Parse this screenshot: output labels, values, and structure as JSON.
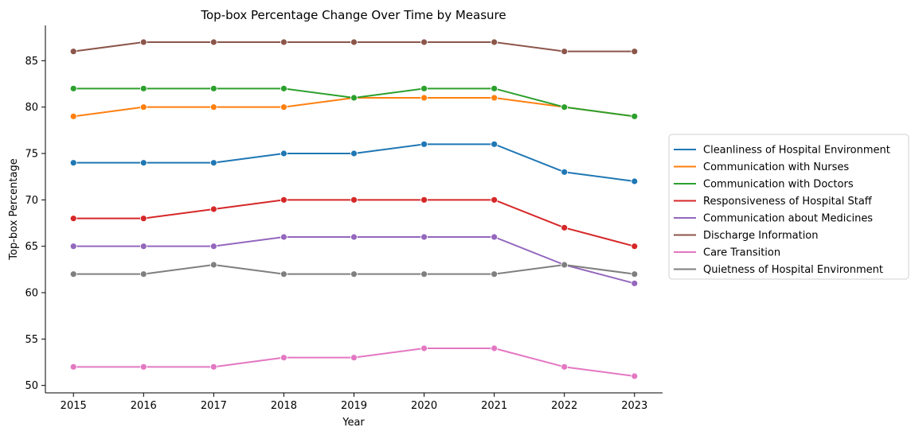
{
  "chart_data": {
    "type": "line",
    "title": "Top-box Percentage Change Over Time by Measure",
    "xlabel": "Year",
    "ylabel": "Top-box Percentage",
    "x": [
      2015,
      2016,
      2017,
      2018,
      2019,
      2020,
      2021,
      2022,
      2023
    ],
    "xlim": [
      2014.6,
      2023.4
    ],
    "ylim": [
      49.2,
      88.8
    ],
    "yticks": [
      50,
      55,
      60,
      65,
      70,
      75,
      80,
      85
    ],
    "grid": false,
    "markers": "circle",
    "legend_position": "right, outside plot area",
    "series": [
      {
        "name": "Cleanliness of Hospital Environment",
        "color": "#1f77b4",
        "values": [
          74,
          74,
          74,
          75,
          75,
          76,
          76,
          73,
          72
        ]
      },
      {
        "name": "Communication with Nurses",
        "color": "#ff7f0e",
        "values": [
          79,
          80,
          80,
          80,
          81,
          81,
          81,
          80,
          79
        ]
      },
      {
        "name": "Communication with Doctors",
        "color": "#2ca02c",
        "values": [
          82,
          82,
          82,
          82,
          81,
          82,
          82,
          80,
          79
        ]
      },
      {
        "name": "Responsiveness of Hospital Staff",
        "color": "#d62728",
        "values": [
          68,
          68,
          69,
          70,
          70,
          70,
          70,
          67,
          65
        ]
      },
      {
        "name": "Communication about Medicines",
        "color": "#9467bd",
        "values": [
          65,
          65,
          65,
          66,
          66,
          66,
          66,
          63,
          61
        ]
      },
      {
        "name": "Discharge Information",
        "color": "#8c564b",
        "values": [
          86,
          87,
          87,
          87,
          87,
          87,
          87,
          86,
          86
        ]
      },
      {
        "name": "Care Transition",
        "color": "#e377c2",
        "values": [
          52,
          52,
          52,
          53,
          53,
          54,
          54,
          52,
          51
        ]
      },
      {
        "name": "Quietness of Hospital Environment",
        "color": "#7f7f7f",
        "values": [
          62,
          62,
          63,
          62,
          62,
          62,
          62,
          63,
          62
        ]
      }
    ]
  }
}
